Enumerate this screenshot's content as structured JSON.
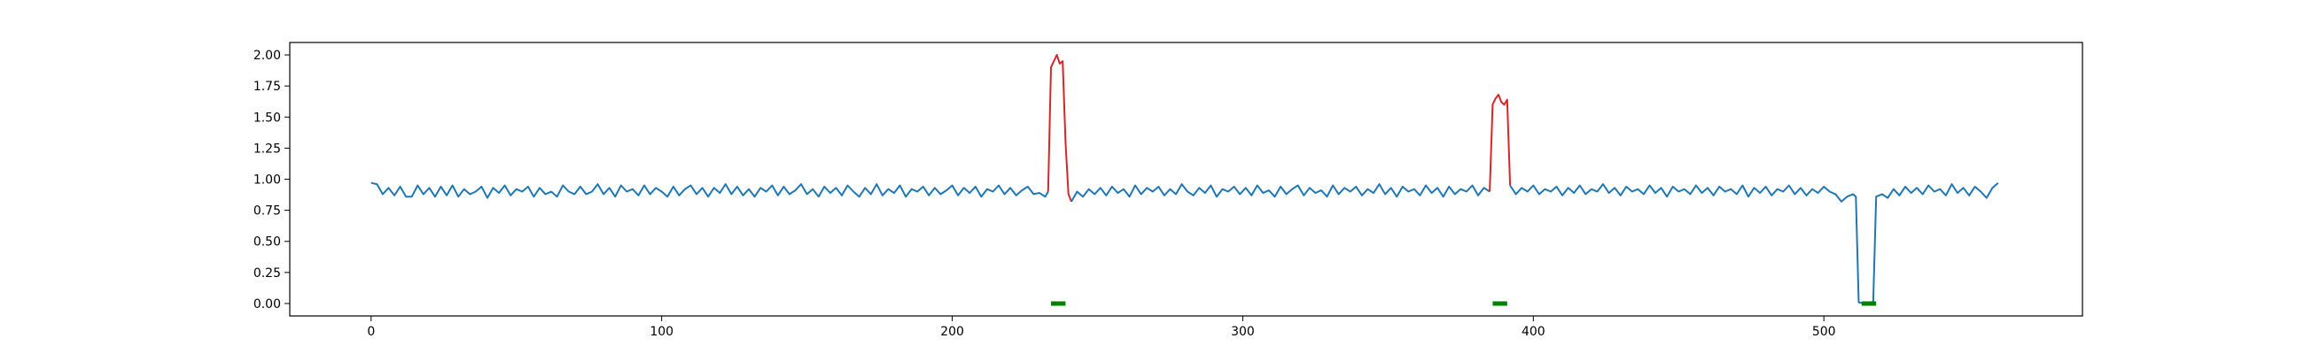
{
  "colors": {
    "series": "#1f77b4",
    "highlight": "#d62728",
    "marker": "#008000"
  },
  "chart_data": {
    "type": "line",
    "title": "",
    "xlabel": "",
    "ylabel": "",
    "xlim": [
      -28,
      589
    ],
    "ylim": [
      -0.1,
      2.1
    ],
    "grid": false,
    "xticks": [
      0,
      100,
      200,
      300,
      400,
      500
    ],
    "yticks": [
      0.0,
      0.25,
      0.5,
      0.75,
      1.0,
      1.25,
      1.5,
      1.75,
      2.0
    ],
    "xtick_labels": [
      "0",
      "100",
      "200",
      "300",
      "400",
      "500"
    ],
    "ytick_labels": [
      "0.00",
      "0.25",
      "0.50",
      "0.75",
      "1.00",
      "1.25",
      "1.50",
      "1.75",
      "2.00"
    ],
    "series": [
      {
        "role": "signal",
        "color": "#1f77b4",
        "points": [
          [
            0,
            0.97
          ],
          [
            2,
            0.96
          ],
          [
            4,
            0.88
          ],
          [
            6,
            0.93
          ],
          [
            8,
            0.87
          ],
          [
            10,
            0.94
          ],
          [
            12,
            0.86
          ],
          [
            14,
            0.86
          ],
          [
            16,
            0.95
          ],
          [
            18,
            0.88
          ],
          [
            20,
            0.93
          ],
          [
            22,
            0.86
          ],
          [
            24,
            0.94
          ],
          [
            26,
            0.87
          ],
          [
            28,
            0.95
          ],
          [
            30,
            0.86
          ],
          [
            32,
            0.92
          ],
          [
            34,
            0.88
          ],
          [
            36,
            0.9
          ],
          [
            38,
            0.94
          ],
          [
            40,
            0.85
          ],
          [
            42,
            0.93
          ],
          [
            44,
            0.89
          ],
          [
            46,
            0.95
          ],
          [
            48,
            0.87
          ],
          [
            50,
            0.92
          ],
          [
            52,
            0.9
          ],
          [
            54,
            0.94
          ],
          [
            56,
            0.86
          ],
          [
            58,
            0.93
          ],
          [
            60,
            0.88
          ],
          [
            62,
            0.9
          ],
          [
            64,
            0.86
          ],
          [
            66,
            0.95
          ],
          [
            68,
            0.9
          ],
          [
            70,
            0.88
          ],
          [
            72,
            0.94
          ],
          [
            74,
            0.88
          ],
          [
            76,
            0.9
          ],
          [
            78,
            0.96
          ],
          [
            80,
            0.88
          ],
          [
            82,
            0.93
          ],
          [
            84,
            0.86
          ],
          [
            86,
            0.95
          ],
          [
            88,
            0.9
          ],
          [
            90,
            0.92
          ],
          [
            92,
            0.87
          ],
          [
            94,
            0.95
          ],
          [
            96,
            0.88
          ],
          [
            98,
            0.93
          ],
          [
            100,
            0.9
          ],
          [
            102,
            0.86
          ],
          [
            104,
            0.94
          ],
          [
            106,
            0.87
          ],
          [
            108,
            0.92
          ],
          [
            110,
            0.95
          ],
          [
            112,
            0.88
          ],
          [
            114,
            0.93
          ],
          [
            116,
            0.86
          ],
          [
            118,
            0.93
          ],
          [
            120,
            0.89
          ],
          [
            122,
            0.96
          ],
          [
            124,
            0.88
          ],
          [
            126,
            0.94
          ],
          [
            128,
            0.87
          ],
          [
            130,
            0.92
          ],
          [
            132,
            0.86
          ],
          [
            134,
            0.93
          ],
          [
            136,
            0.9
          ],
          [
            138,
            0.95
          ],
          [
            140,
            0.87
          ],
          [
            142,
            0.94
          ],
          [
            144,
            0.88
          ],
          [
            146,
            0.91
          ],
          [
            148,
            0.96
          ],
          [
            150,
            0.88
          ],
          [
            152,
            0.92
          ],
          [
            154,
            0.86
          ],
          [
            156,
            0.94
          ],
          [
            158,
            0.89
          ],
          [
            160,
            0.93
          ],
          [
            162,
            0.87
          ],
          [
            164,
            0.95
          ],
          [
            166,
            0.9
          ],
          [
            168,
            0.86
          ],
          [
            170,
            0.93
          ],
          [
            172,
            0.88
          ],
          [
            174,
            0.96
          ],
          [
            176,
            0.87
          ],
          [
            178,
            0.92
          ],
          [
            180,
            0.89
          ],
          [
            182,
            0.95
          ],
          [
            184,
            0.86
          ],
          [
            186,
            0.92
          ],
          [
            188,
            0.9
          ],
          [
            190,
            0.94
          ],
          [
            192,
            0.87
          ],
          [
            194,
            0.93
          ],
          [
            196,
            0.88
          ],
          [
            198,
            0.91
          ],
          [
            200,
            0.95
          ],
          [
            202,
            0.87
          ],
          [
            204,
            0.93
          ],
          [
            206,
            0.89
          ],
          [
            208,
            0.94
          ],
          [
            210,
            0.86
          ],
          [
            212,
            0.92
          ],
          [
            214,
            0.9
          ],
          [
            216,
            0.95
          ],
          [
            218,
            0.88
          ],
          [
            220,
            0.93
          ],
          [
            222,
            0.87
          ],
          [
            224,
            0.91
          ],
          [
            226,
            0.94
          ],
          [
            228,
            0.88
          ],
          [
            230,
            0.89
          ],
          [
            232,
            0.86
          ],
          [
            233,
            0.9
          ]
        ]
      },
      {
        "role": "anomaly",
        "color": "#d62728",
        "points": [
          [
            233,
            0.9
          ],
          [
            234,
            1.9
          ],
          [
            235,
            1.95
          ],
          [
            236,
            2.0
          ],
          [
            237,
            1.93
          ],
          [
            238,
            1.95
          ],
          [
            239,
            1.3
          ],
          [
            240,
            0.88
          ],
          [
            241,
            0.82
          ]
        ]
      },
      {
        "role": "signal",
        "color": "#1f77b4",
        "points": [
          [
            241,
            0.82
          ],
          [
            243,
            0.9
          ],
          [
            245,
            0.86
          ],
          [
            247,
            0.92
          ],
          [
            249,
            0.88
          ],
          [
            251,
            0.93
          ],
          [
            253,
            0.87
          ],
          [
            255,
            0.94
          ],
          [
            257,
            0.89
          ],
          [
            259,
            0.92
          ],
          [
            261,
            0.86
          ],
          [
            263,
            0.95
          ],
          [
            265,
            0.88
          ],
          [
            267,
            0.93
          ],
          [
            269,
            0.9
          ],
          [
            271,
            0.94
          ],
          [
            273,
            0.87
          ],
          [
            275,
            0.92
          ],
          [
            277,
            0.88
          ],
          [
            279,
            0.96
          ],
          [
            281,
            0.9
          ],
          [
            283,
            0.87
          ],
          [
            285,
            0.93
          ],
          [
            287,
            0.89
          ],
          [
            289,
            0.95
          ],
          [
            291,
            0.86
          ],
          [
            293,
            0.92
          ],
          [
            295,
            0.9
          ],
          [
            297,
            0.94
          ],
          [
            299,
            0.88
          ],
          [
            301,
            0.93
          ],
          [
            303,
            0.87
          ],
          [
            305,
            0.95
          ],
          [
            307,
            0.89
          ],
          [
            309,
            0.91
          ],
          [
            311,
            0.86
          ],
          [
            313,
            0.94
          ],
          [
            315,
            0.88
          ],
          [
            317,
            0.92
          ],
          [
            319,
            0.95
          ],
          [
            321,
            0.87
          ],
          [
            323,
            0.93
          ],
          [
            325,
            0.89
          ],
          [
            327,
            0.91
          ],
          [
            329,
            0.86
          ],
          [
            331,
            0.95
          ],
          [
            333,
            0.88
          ],
          [
            335,
            0.93
          ],
          [
            337,
            0.9
          ],
          [
            339,
            0.94
          ],
          [
            341,
            0.87
          ],
          [
            343,
            0.92
          ],
          [
            345,
            0.89
          ],
          [
            347,
            0.96
          ],
          [
            349,
            0.88
          ],
          [
            351,
            0.93
          ],
          [
            353,
            0.86
          ],
          [
            355,
            0.94
          ],
          [
            357,
            0.9
          ],
          [
            359,
            0.92
          ],
          [
            361,
            0.87
          ],
          [
            363,
            0.95
          ],
          [
            365,
            0.89
          ],
          [
            367,
            0.93
          ],
          [
            369,
            0.86
          ],
          [
            371,
            0.94
          ],
          [
            373,
            0.88
          ],
          [
            375,
            0.92
          ],
          [
            377,
            0.9
          ],
          [
            379,
            0.95
          ],
          [
            381,
            0.87
          ],
          [
            383,
            0.93
          ],
          [
            385,
            0.9
          ]
        ]
      },
      {
        "role": "anomaly",
        "color": "#d62728",
        "points": [
          [
            385,
            0.9
          ],
          [
            386,
            1.6
          ],
          [
            387,
            1.65
          ],
          [
            388,
            1.68
          ],
          [
            389,
            1.62
          ],
          [
            390,
            1.6
          ],
          [
            391,
            1.64
          ],
          [
            392,
            0.95
          ]
        ]
      },
      {
        "role": "signal",
        "color": "#1f77b4",
        "points": [
          [
            392,
            0.95
          ],
          [
            394,
            0.88
          ],
          [
            396,
            0.93
          ],
          [
            398,
            0.9
          ],
          [
            400,
            0.95
          ],
          [
            402,
            0.88
          ],
          [
            404,
            0.92
          ],
          [
            406,
            0.9
          ],
          [
            408,
            0.94
          ],
          [
            410,
            0.87
          ],
          [
            412,
            0.93
          ],
          [
            414,
            0.89
          ],
          [
            416,
            0.95
          ],
          [
            418,
            0.88
          ],
          [
            420,
            0.92
          ],
          [
            422,
            0.9
          ],
          [
            424,
            0.96
          ],
          [
            426,
            0.89
          ],
          [
            428,
            0.93
          ],
          [
            430,
            0.87
          ],
          [
            432,
            0.94
          ],
          [
            434,
            0.9
          ],
          [
            436,
            0.92
          ],
          [
            438,
            0.88
          ],
          [
            440,
            0.95
          ],
          [
            442,
            0.89
          ],
          [
            444,
            0.93
          ],
          [
            446,
            0.86
          ],
          [
            448,
            0.94
          ],
          [
            450,
            0.9
          ],
          [
            452,
            0.92
          ],
          [
            454,
            0.88
          ],
          [
            456,
            0.95
          ],
          [
            458,
            0.89
          ],
          [
            460,
            0.93
          ],
          [
            462,
            0.87
          ],
          [
            464,
            0.94
          ],
          [
            466,
            0.9
          ],
          [
            468,
            0.92
          ],
          [
            470,
            0.88
          ],
          [
            472,
            0.95
          ],
          [
            474,
            0.86
          ],
          [
            476,
            0.93
          ],
          [
            478,
            0.89
          ],
          [
            480,
            0.94
          ],
          [
            482,
            0.87
          ],
          [
            484,
            0.92
          ],
          [
            486,
            0.9
          ],
          [
            488,
            0.95
          ],
          [
            490,
            0.88
          ],
          [
            492,
            0.93
          ],
          [
            494,
            0.87
          ],
          [
            496,
            0.92
          ],
          [
            498,
            0.89
          ],
          [
            500,
            0.94
          ],
          [
            502,
            0.9
          ],
          [
            504,
            0.88
          ],
          [
            506,
            0.82
          ],
          [
            508,
            0.86
          ],
          [
            510,
            0.88
          ],
          [
            511,
            0.86
          ],
          [
            512,
            0.01
          ],
          [
            514,
            0.0
          ],
          [
            516,
            0.0
          ],
          [
            517,
            0.02
          ],
          [
            518,
            0.86
          ],
          [
            520,
            0.88
          ],
          [
            522,
            0.85
          ],
          [
            524,
            0.92
          ],
          [
            526,
            0.87
          ],
          [
            528,
            0.94
          ],
          [
            530,
            0.89
          ],
          [
            532,
            0.93
          ],
          [
            534,
            0.88
          ],
          [
            536,
            0.95
          ],
          [
            538,
            0.9
          ],
          [
            540,
            0.92
          ],
          [
            542,
            0.87
          ],
          [
            544,
            0.96
          ],
          [
            546,
            0.89
          ],
          [
            548,
            0.93
          ],
          [
            550,
            0.87
          ],
          [
            552,
            0.94
          ],
          [
            554,
            0.9
          ],
          [
            556,
            0.85
          ],
          [
            558,
            0.93
          ],
          [
            560,
            0.97
          ]
        ]
      }
    ],
    "markers": [
      {
        "color": "#008000",
        "y": 0.0,
        "x_range": [
          234,
          239
        ]
      },
      {
        "color": "#008000",
        "y": 0.0,
        "x_range": [
          386,
          391
        ]
      },
      {
        "color": "#008000",
        "y": 0.0,
        "x_range": [
          513,
          518
        ]
      }
    ]
  }
}
